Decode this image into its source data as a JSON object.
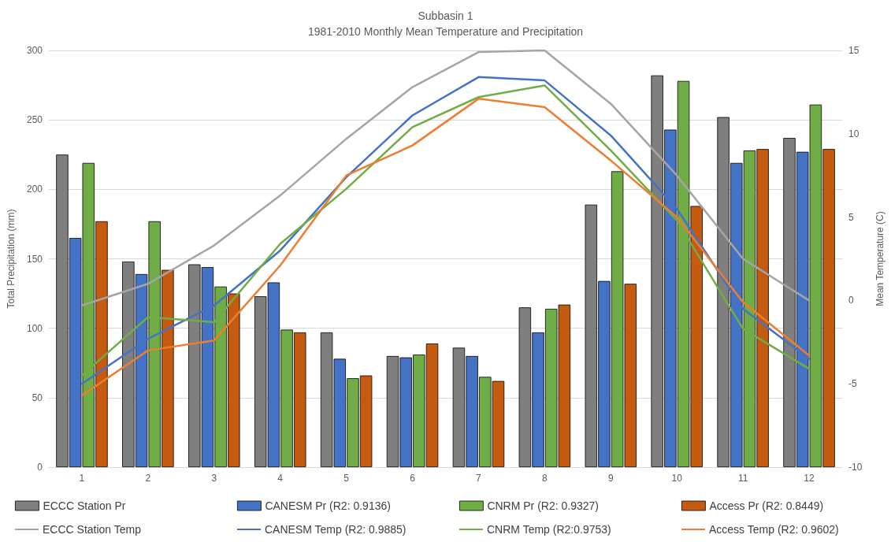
{
  "chart_data": {
    "type": "bar",
    "title": "Subbasin 1",
    "subtitle": "1981-2010 Monthly Mean Temperature and Precipitation",
    "xlabel": null,
    "ylabel": "Total Precipitation (mm)",
    "y2label": "Mean Temperature (C)",
    "categories": [
      "1",
      "2",
      "3",
      "4",
      "5",
      "6",
      "7",
      "8",
      "9",
      "10",
      "11",
      "12"
    ],
    "series": [
      {
        "name": "ECCC Station Pr",
        "color": "#7f7f7f",
        "values": [
          225,
          148,
          146,
          123,
          97,
          80,
          86,
          115,
          189,
          282,
          252,
          237
        ]
      },
      {
        "name": "CANESM Pr (R2: 0.9136)",
        "color": "#4472c4",
        "values": [
          165,
          139,
          144,
          133,
          78,
          79,
          80,
          97,
          134,
          243,
          219,
          227
        ]
      },
      {
        "name": "CNRM Pr (R2: 0.9327)",
        "color": "#70ad47",
        "values": [
          219,
          177,
          130,
          99,
          64,
          81,
          65,
          114,
          213,
          278,
          228,
          261
        ]
      },
      {
        "name": "Access Pr (R2: 0.8449)",
        "color": "#c55a11",
        "values": [
          177,
          142,
          125,
          97,
          66,
          89,
          62,
          117,
          132,
          188,
          229,
          229
        ]
      },
      {
        "name": "ECCC Station Temp",
        "type": "line",
        "axis": "y2",
        "color": "#a5a5a5",
        "values": [
          -0.3,
          1.0,
          3.3,
          6.3,
          9.7,
          12.8,
          14.9,
          15.0,
          11.8,
          7.5,
          2.5,
          0.0
        ]
      },
      {
        "name": "CANESM Temp (R2: 0.9885)",
        "type": "line",
        "axis": "y2",
        "color": "#4472c4",
        "values": [
          -5.0,
          -2.3,
          -0.3,
          3.0,
          7.4,
          11.1,
          13.4,
          13.2,
          9.9,
          5.5,
          -0.5,
          -3.5
        ]
      },
      {
        "name": "CNRM Temp (R2:0.9753)",
        "type": "line",
        "axis": "y2",
        "color": "#70ad47",
        "values": [
          -4.5,
          -1.0,
          -1.3,
          3.4,
          6.7,
          10.4,
          12.2,
          12.9,
          9.0,
          4.8,
          -1.7,
          -4.1
        ]
      },
      {
        "name": "Access Temp (R2: 0.9602)",
        "type": "line",
        "axis": "y2",
        "color": "#ed7d31",
        "values": [
          -5.7,
          -3.0,
          -2.4,
          2.1,
          7.5,
          9.3,
          12.1,
          11.6,
          8.4,
          5.0,
          -0.1,
          -3.3
        ]
      }
    ],
    "ylim": [
      0,
      300
    ],
    "yticks": [
      0,
      50,
      100,
      150,
      200,
      250,
      300
    ],
    "y2lim": [
      -10,
      15
    ],
    "y2ticks": [
      -10,
      -5,
      0,
      5,
      10,
      15
    ],
    "grid": "y",
    "legend": "bottom",
    "marker": "none",
    "line_style": "solid"
  }
}
